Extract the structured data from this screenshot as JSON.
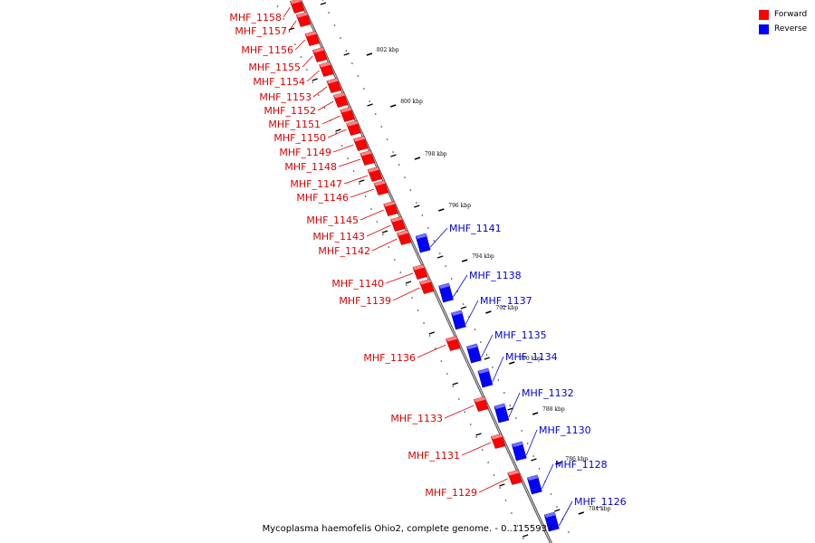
{
  "legend": {
    "forward_label": "Forward",
    "reverse_label": "Reverse",
    "forward_color": "#ff0000",
    "reverse_color": "#0000ff"
  },
  "caption": "Mycoplasma haemofelis Ohio2, complete genome. - 0..1155937",
  "ticks": [
    "802 kbp",
    "800 kbp",
    "798 kbp",
    "796 kbp",
    "794 kbp",
    "792 kbp",
    "790 kbp",
    "788 kbp",
    "786 kbp",
    "784 kbp"
  ],
  "genes": [
    {
      "name": "MHF_1158",
      "strand": "forward"
    },
    {
      "name": "MHF_1157",
      "strand": "forward"
    },
    {
      "name": "MHF_1156",
      "strand": "forward"
    },
    {
      "name": "MHF_1155",
      "strand": "forward"
    },
    {
      "name": "MHF_1154",
      "strand": "forward"
    },
    {
      "name": "MHF_1153",
      "strand": "forward"
    },
    {
      "name": "MHF_1152",
      "strand": "forward"
    },
    {
      "name": "MHF_1151",
      "strand": "forward"
    },
    {
      "name": "MHF_1150",
      "strand": "forward"
    },
    {
      "name": "MHF_1149",
      "strand": "forward"
    },
    {
      "name": "MHF_1148",
      "strand": "forward"
    },
    {
      "name": "MHF_1147",
      "strand": "forward"
    },
    {
      "name": "MHF_1146",
      "strand": "forward"
    },
    {
      "name": "MHF_1145",
      "strand": "forward"
    },
    {
      "name": "MHF_1143",
      "strand": "forward"
    },
    {
      "name": "MHF_1142",
      "strand": "forward"
    },
    {
      "name": "MHF_1141",
      "strand": "reverse"
    },
    {
      "name": "MHF_1140",
      "strand": "forward"
    },
    {
      "name": "MHF_1139",
      "strand": "forward"
    },
    {
      "name": "MHF_1138",
      "strand": "reverse"
    },
    {
      "name": "MHF_1137",
      "strand": "reverse"
    },
    {
      "name": "MHF_1136",
      "strand": "forward"
    },
    {
      "name": "MHF_1135",
      "strand": "reverse"
    },
    {
      "name": "MHF_1134",
      "strand": "reverse"
    },
    {
      "name": "MHF_1133",
      "strand": "forward"
    },
    {
      "name": "MHF_1132",
      "strand": "reverse"
    },
    {
      "name": "MHF_1131",
      "strand": "forward"
    },
    {
      "name": "MHF_1130",
      "strand": "reverse"
    },
    {
      "name": "MHF_1129",
      "strand": "forward"
    },
    {
      "name": "MHF_1128",
      "strand": "reverse"
    },
    {
      "name": "MHF_1126",
      "strand": "reverse"
    }
  ]
}
